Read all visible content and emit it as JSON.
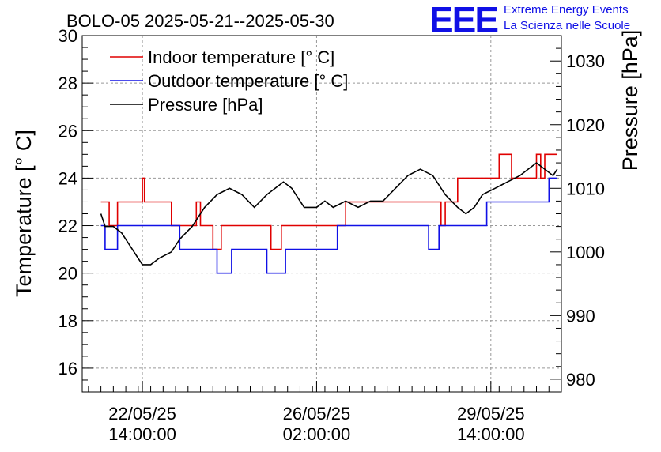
{
  "chart_data": {
    "type": "line",
    "title": "BOLO-05 2025-05-21--2025-05-30",
    "ylabel": "Temperature [° C]",
    "y2label": "Pressure [hPa]",
    "xlabel": "",
    "xlim": [
      "2025-05-21 09:00",
      "2025-05-31 00:00"
    ],
    "ylim": [
      15,
      30
    ],
    "y2lim": [
      978,
      1034
    ],
    "yticks": [
      16,
      18,
      20,
      22,
      24,
      26,
      28,
      30
    ],
    "y2ticks": [
      980,
      990,
      1000,
      1010,
      1020,
      1030
    ],
    "xticks": [
      {
        "t": "2025-05-22 14:00",
        "date": "22/05/25",
        "time": "14:00:00"
      },
      {
        "t": "2025-05-26 02:00",
        "date": "26/05/25",
        "time": "02:00:00"
      },
      {
        "t": "2025-05-29 14:00",
        "date": "29/05/25",
        "time": "14:00:00"
      }
    ],
    "grid": true,
    "legend_position": "top-left",
    "series": [
      {
        "name": "Indoor temperature [° C]",
        "axis": "left",
        "color": "#e00000",
        "step": true,
        "points": [
          [
            "2025-05-21 18:00",
            23
          ],
          [
            "2025-05-21 22:00",
            22
          ],
          [
            "2025-05-22 02:00",
            23
          ],
          [
            "2025-05-22 14:00",
            24
          ],
          [
            "2025-05-22 15:00",
            23
          ],
          [
            "2025-05-23 04:00",
            22
          ],
          [
            "2025-05-23 16:00",
            23
          ],
          [
            "2025-05-23 18:00",
            22
          ],
          [
            "2025-05-24 00:00",
            21
          ],
          [
            "2025-05-24 04:00",
            22
          ],
          [
            "2025-05-25 04:00",
            21
          ],
          [
            "2025-05-25 09:00",
            22
          ],
          [
            "2025-05-26 16:00",
            23
          ],
          [
            "2025-05-28 14:00",
            22
          ],
          [
            "2025-05-28 16:00",
            23
          ],
          [
            "2025-05-28 22:00",
            24
          ],
          [
            "2025-05-29 18:00",
            25
          ],
          [
            "2025-05-30 00:00",
            24
          ],
          [
            "2025-05-30 12:00",
            25
          ],
          [
            "2025-05-30 14:00",
            24
          ],
          [
            "2025-05-30 16:00",
            25
          ],
          [
            "2025-05-30 22:00",
            25
          ]
        ]
      },
      {
        "name": "Outdoor temperature [° C]",
        "axis": "left",
        "color": "#1010e6",
        "step": true,
        "points": [
          [
            "2025-05-21 18:00",
            22
          ],
          [
            "2025-05-21 20:00",
            21
          ],
          [
            "2025-05-22 02:00",
            22
          ],
          [
            "2025-05-23 08:00",
            21
          ],
          [
            "2025-05-24 02:00",
            20
          ],
          [
            "2025-05-24 09:00",
            21
          ],
          [
            "2025-05-25 02:00",
            20
          ],
          [
            "2025-05-25 11:00",
            21
          ],
          [
            "2025-05-26 12:00",
            22
          ],
          [
            "2025-05-28 08:00",
            21
          ],
          [
            "2025-05-28 13:00",
            22
          ],
          [
            "2025-05-29 12:00",
            23
          ],
          [
            "2025-05-30 18:00",
            24
          ],
          [
            "2025-05-30 22:00",
            24
          ]
        ]
      },
      {
        "name": "Pressure [hPa]",
        "axis": "right",
        "color": "#000000",
        "step": false,
        "points": [
          [
            "2025-05-21 18:00",
            1006
          ],
          [
            "2025-05-21 20:00",
            1004
          ],
          [
            "2025-05-22 00:00",
            1004
          ],
          [
            "2025-05-22 04:00",
            1003
          ],
          [
            "2025-05-22 08:00",
            1001
          ],
          [
            "2025-05-22 12:00",
            999
          ],
          [
            "2025-05-22 14:00",
            998
          ],
          [
            "2025-05-22 18:00",
            998
          ],
          [
            "2025-05-22 22:00",
            999
          ],
          [
            "2025-05-23 04:00",
            1000
          ],
          [
            "2025-05-23 08:00",
            1002
          ],
          [
            "2025-05-23 14:00",
            1004
          ],
          [
            "2025-05-23 20:00",
            1007
          ],
          [
            "2025-05-24 02:00",
            1009
          ],
          [
            "2025-05-24 08:00",
            1010
          ],
          [
            "2025-05-24 14:00",
            1009
          ],
          [
            "2025-05-24 20:00",
            1007
          ],
          [
            "2025-05-25 02:00",
            1009
          ],
          [
            "2025-05-25 06:00",
            1010
          ],
          [
            "2025-05-25 10:00",
            1011
          ],
          [
            "2025-05-25 14:00",
            1010
          ],
          [
            "2025-05-25 20:00",
            1007
          ],
          [
            "2025-05-26 02:00",
            1007
          ],
          [
            "2025-05-26 06:00",
            1008
          ],
          [
            "2025-05-26 10:00",
            1007
          ],
          [
            "2025-05-26 16:00",
            1008
          ],
          [
            "2025-05-26 22:00",
            1007
          ],
          [
            "2025-05-27 04:00",
            1008
          ],
          [
            "2025-05-27 10:00",
            1008
          ],
          [
            "2025-05-27 16:00",
            1010
          ],
          [
            "2025-05-27 22:00",
            1012
          ],
          [
            "2025-05-28 04:00",
            1013
          ],
          [
            "2025-05-28 10:00",
            1012
          ],
          [
            "2025-05-28 16:00",
            1009
          ],
          [
            "2025-05-28 22:00",
            1007
          ],
          [
            "2025-05-29 02:00",
            1006
          ],
          [
            "2025-05-29 06:00",
            1007
          ],
          [
            "2025-05-29 10:00",
            1009
          ],
          [
            "2025-05-29 16:00",
            1010
          ],
          [
            "2025-05-29 22:00",
            1011
          ],
          [
            "2025-05-30 04:00",
            1012
          ],
          [
            "2025-05-30 08:00",
            1013
          ],
          [
            "2025-05-30 12:00",
            1014
          ],
          [
            "2025-05-30 16:00",
            1013
          ],
          [
            "2025-05-30 20:00",
            1012
          ],
          [
            "2025-05-30 22:00",
            1013
          ]
        ]
      }
    ]
  },
  "branding": {
    "logo_text": "EEE",
    "org_line1": "Extreme Energy Events",
    "org_line2": "La Scienza nelle Scuole"
  }
}
